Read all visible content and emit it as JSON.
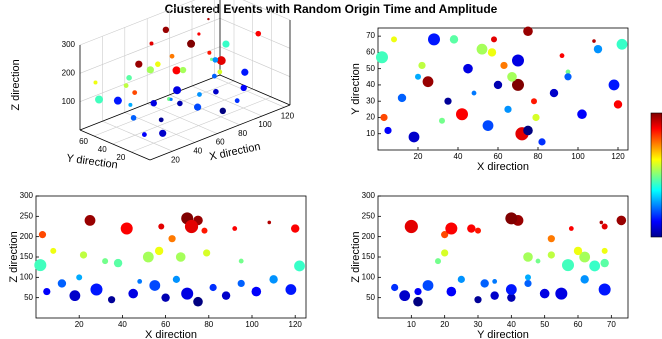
{
  "title": "Clustered Events with Random Origin Time and Amplitude",
  "chart_data": {
    "type": "scatter",
    "x": [
      3,
      25,
      42,
      58,
      70,
      75,
      78,
      92,
      108,
      120,
      72,
      63,
      2,
      8,
      22,
      38,
      52,
      57,
      67,
      79,
      95,
      122,
      32,
      5,
      12,
      18,
      28,
      35,
      45,
      55,
      60,
      65,
      70,
      75,
      82,
      88,
      95,
      102,
      110,
      118,
      20,
      48
    ],
    "y": [
      20,
      42,
      22,
      68,
      40,
      73,
      30,
      58,
      67,
      28,
      10,
      52,
      57,
      68,
      52,
      68,
      62,
      60,
      45,
      20,
      48,
      65,
      18,
      12,
      32,
      8,
      68,
      30,
      50,
      15,
      40,
      25,
      55,
      12,
      5,
      35,
      45,
      22,
      62,
      40,
      45,
      35
    ],
    "z": [
      205,
      240,
      220,
      225,
      245,
      240,
      215,
      220,
      235,
      220,
      225,
      195,
      130,
      165,
      155,
      135,
      150,
      165,
      150,
      160,
      140,
      128,
      140,
      65,
      85,
      55,
      70,
      45,
      60,
      80,
      50,
      95,
      60,
      40,
      75,
      55,
      85,
      65,
      95,
      70,
      100,
      90
    ],
    "size": [
      6,
      9,
      10,
      5,
      10,
      8,
      5,
      4,
      3,
      7,
      11,
      6,
      10,
      5,
      6,
      7,
      9,
      7,
      8,
      6,
      4,
      9,
      5,
      6,
      7,
      9,
      10,
      6,
      8,
      9,
      7,
      6,
      10,
      8,
      6,
      7,
      6,
      8,
      7,
      9,
      5,
      4
    ],
    "colormap": "jet",
    "colorbar": true,
    "grid3d": true,
    "xlabel": "X direction",
    "ylabel": "Y direction",
    "zlabel": "Z direction",
    "xlim": [
      0,
      125
    ],
    "xticks": [
      20,
      40,
      60,
      80,
      100,
      120
    ],
    "ylim": [
      0,
      75
    ],
    "yticks": [
      10,
      20,
      30,
      40,
      50,
      60,
      70
    ],
    "y3dticks": [
      20,
      40,
      60
    ],
    "zlim": [
      0,
      300
    ],
    "zticks": [
      50,
      100,
      150,
      200,
      250,
      300
    ],
    "z3dticks": [
      100,
      200,
      300
    ]
  }
}
